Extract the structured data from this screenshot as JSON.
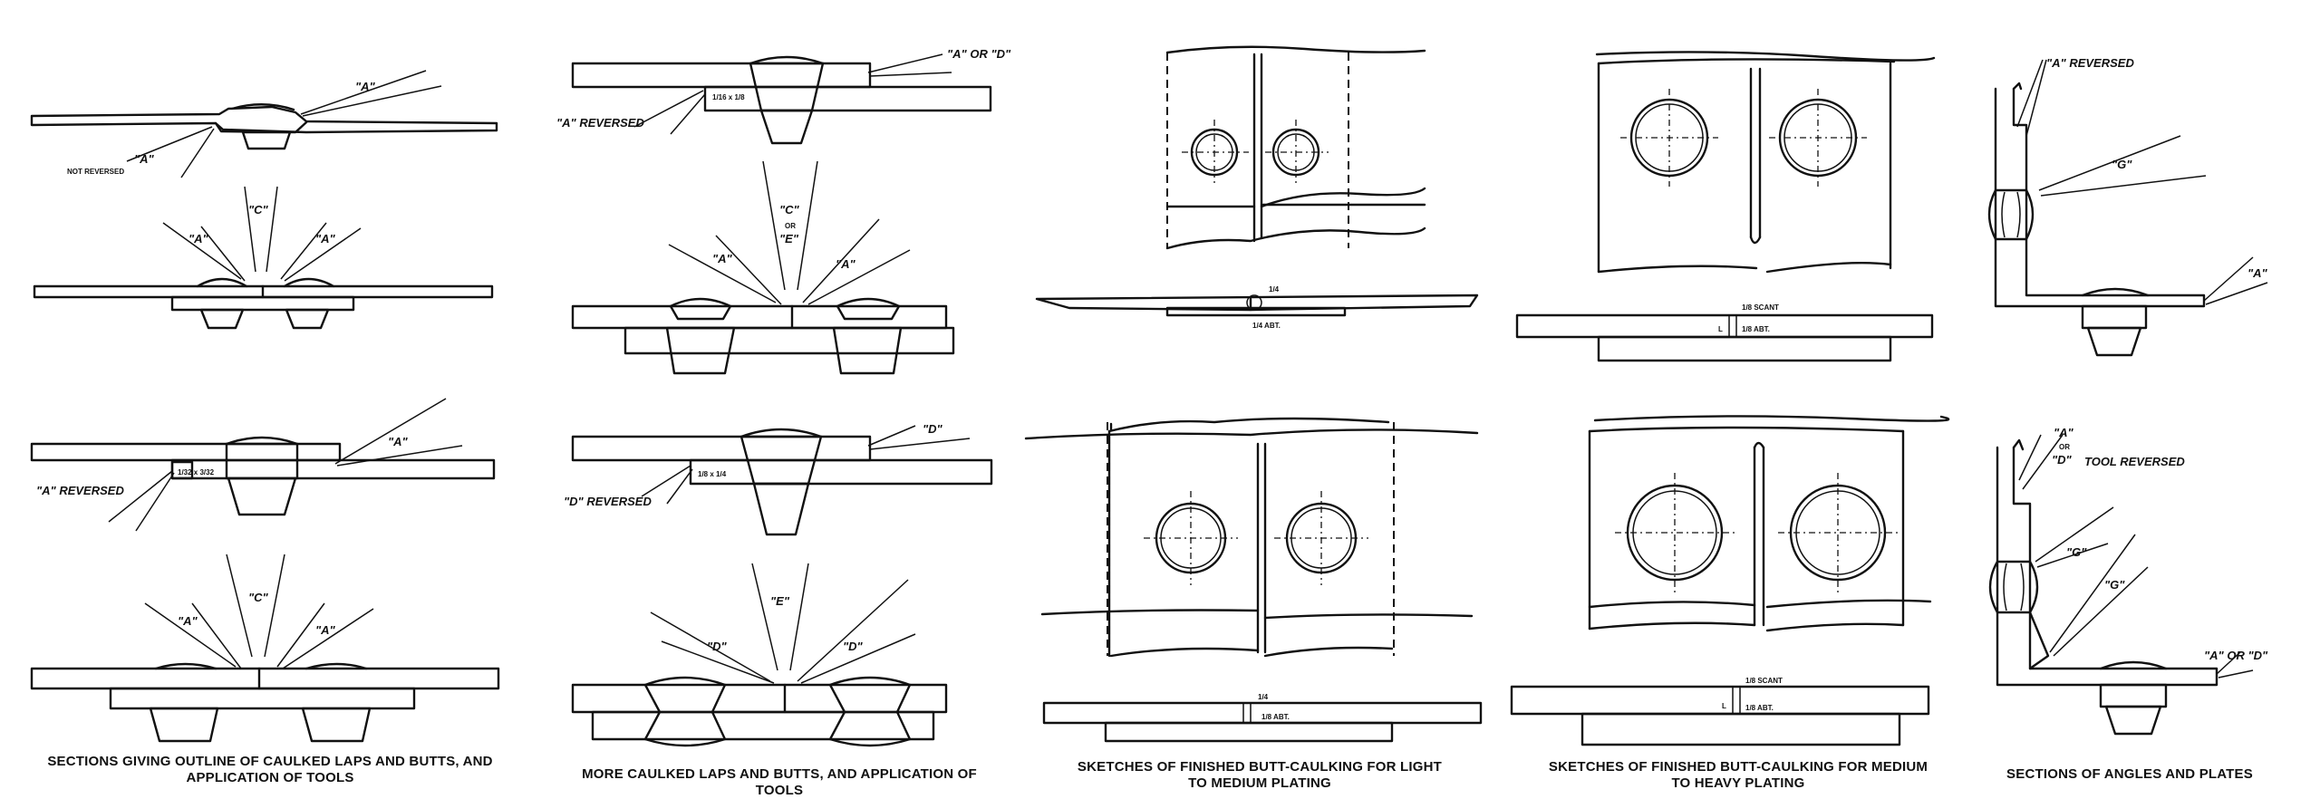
{
  "panels": [
    {
      "caption": "SECTIONS GIVING OUTLINE OF CAULKED LAPS AND BUTTS, AND APPLICATION OF TOOLS"
    },
    {
      "caption": "MORE CAULKED LAPS AND BUTTS, AND APPLICATION OF TOOLS"
    },
    {
      "caption": "SKETCHES OF FINISHED BUTT-CAULKING FOR LIGHT TO MEDIUM PLATING"
    },
    {
      "caption": "SKETCHES OF FINISHED BUTT-CAULKING FOR MEDIUM TO HEAVY PLATING"
    },
    {
      "caption": "SECTIONS OF ANGLES AND PLATES"
    }
  ],
  "labels": {
    "a": "\"A\"",
    "a_not_reversed_1": "\"A\"",
    "not_reversed": "NOT REVERSED",
    "c": "\"C\"",
    "a_reversed": "\"A\" REVERSED",
    "a_or": "\"A\"",
    "or": "OR",
    "d": "\"D\"",
    "e": "\"E\"",
    "a_or_d": "\"A\" OR \"D\"",
    "d_reversed": "\"D\" REVERSED",
    "g": "\"G\"",
    "a_reversed_2": "\"A\" REVERSED",
    "tool_reversed": "TOOL REVERSED",
    "dim_1_32_3_32": "1/32 x 3/32",
    "dim_1_16_1_8": "1/16 x 1/8",
    "dim_1_8_1_4": "1/8 x 1/4",
    "dim_1_4": "1/4",
    "dim_1_4_abt": "1/4 ABT.",
    "dim_1_8_abt": "1/8 ABT.",
    "dim_1_8_scant": "1/8 SCANT",
    "dim_l": "L"
  }
}
